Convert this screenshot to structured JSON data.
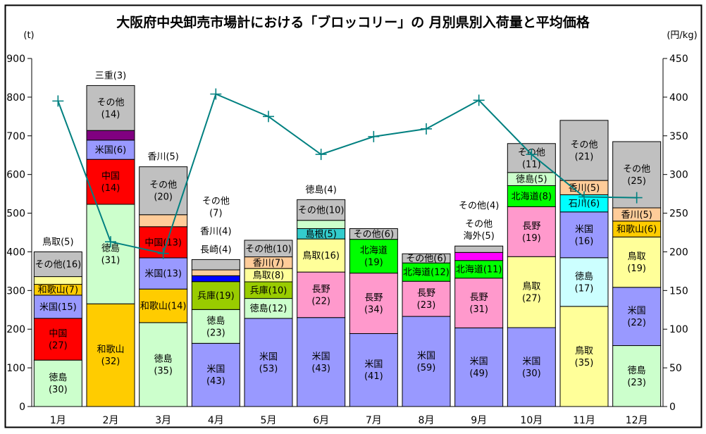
{
  "title": "大阪府中央卸売市場計における「ブロッコリー」の 月別県別入荷量と平均価格",
  "left_axis": {
    "unit": "(t)",
    "min": 0,
    "max": 900,
    "step": 100
  },
  "right_axis": {
    "unit": "(円/kg)",
    "min": 0,
    "max": 450,
    "step": 50
  },
  "chart_data": {
    "type": "stacked-bar+line",
    "categories": [
      "1月",
      "2月",
      "3月",
      "4月",
      "5月",
      "6月",
      "7月",
      "8月",
      "9月",
      "10月",
      "11月",
      "12月"
    ],
    "bar_unit": "t",
    "segment_value_meaning": "percent share shown in parentheses",
    "months": [
      {
        "month": "1月",
        "total_t": 400,
        "segments": [
          {
            "name": "徳島",
            "pct": 30,
            "color": "#CCFFCC",
            "label_lines": [
              "徳島",
              "(30)"
            ]
          },
          {
            "name": "中国",
            "pct": 27,
            "color": "#FF0000",
            "label_lines": [
              "中国",
              "(27)"
            ]
          },
          {
            "name": "米国",
            "pct": 15,
            "color": "#9999FF",
            "label_lines": [
              "米国(15)"
            ]
          },
          {
            "name": "和歌山",
            "pct": 7,
            "color": "#FFCC00",
            "label_lines": [
              "和歌山(7)"
            ]
          },
          {
            "name": "鳥取",
            "pct": 5,
            "color": "#FFFF99",
            "label_lines": null
          },
          {
            "name": "その他",
            "pct": 16,
            "color": "#C0C0C0",
            "label_lines": [
              "その他(16)"
            ]
          }
        ],
        "outside_labels": [
          [
            "鳥取(5)"
          ]
        ]
      },
      {
        "month": "2月",
        "total_t": 830,
        "segments": [
          {
            "name": "和歌山",
            "pct": 32,
            "color": "#FFCC00",
            "label_lines": [
              "和歌山",
              "(32)"
            ]
          },
          {
            "name": "徳島",
            "pct": 31,
            "color": "#CCFFCC",
            "label_lines": [
              "徳島",
              "(31)"
            ]
          },
          {
            "name": "中国",
            "pct": 14,
            "color": "#FF0000",
            "label_lines": [
              "中国",
              "(14)"
            ]
          },
          {
            "name": "米国",
            "pct": 6,
            "color": "#9999FF",
            "label_lines": [
              "米国(6)"
            ]
          },
          {
            "name": "三重",
            "pct": 3,
            "color": "#800080",
            "label_lines": null
          },
          {
            "name": "その他",
            "pct": 14,
            "color": "#C0C0C0",
            "label_lines": [
              "その他",
              "(14)"
            ]
          }
        ],
        "outside_labels": [
          [
            "三重(3)"
          ]
        ]
      },
      {
        "month": "3月",
        "total_t": 620,
        "segments": [
          {
            "name": "徳島",
            "pct": 35,
            "color": "#CCFFCC",
            "label_lines": [
              "徳島",
              "(35)"
            ]
          },
          {
            "name": "和歌山",
            "pct": 14,
            "color": "#FFCC00",
            "label_lines": [
              "和歌山(14)"
            ]
          },
          {
            "name": "米国",
            "pct": 13,
            "color": "#9999FF",
            "label_lines": [
              "米国(13)"
            ]
          },
          {
            "name": "中国",
            "pct": 13,
            "color": "#FF0000",
            "label_lines": [
              "中国(13)"
            ]
          },
          {
            "name": "香川",
            "pct": 5,
            "color": "#FFCC99",
            "label_lines": null
          },
          {
            "name": "その他",
            "pct": 20,
            "color": "#C0C0C0",
            "label_lines": [
              "その他",
              "(20)"
            ]
          }
        ],
        "outside_labels": [
          [
            "香川(5)"
          ]
        ]
      },
      {
        "month": "4月",
        "total_t": 380,
        "segments": [
          {
            "name": "米国",
            "pct": 43,
            "color": "#9999FF",
            "label_lines": [
              "米国",
              "(43)"
            ]
          },
          {
            "name": "徳島",
            "pct": 23,
            "color": "#CCFFCC",
            "label_lines": [
              "徳島",
              "(23)"
            ]
          },
          {
            "name": "兵庫",
            "pct": 19,
            "color": "#99CC00",
            "label_lines": [
              "兵庫(19)"
            ]
          },
          {
            "name": "長崎",
            "pct": 4,
            "color": "#0000FF",
            "label_lines": null
          },
          {
            "name": "香川",
            "pct": 4,
            "color": "#FFCC99",
            "label_lines": null
          },
          {
            "name": "その他",
            "pct": 7,
            "color": "#C0C0C0",
            "label_lines": null
          }
        ],
        "outside_labels": [
          [
            "その他",
            "(7)"
          ],
          [
            "香川(4)"
          ],
          [
            "長崎(4)"
          ]
        ]
      },
      {
        "month": "5月",
        "total_t": 430,
        "segments": [
          {
            "name": "米国",
            "pct": 53,
            "color": "#9999FF",
            "label_lines": [
              "米国",
              "(53)"
            ]
          },
          {
            "name": "徳島",
            "pct": 12,
            "color": "#CCFFCC",
            "label_lines": [
              "徳島(12)"
            ]
          },
          {
            "name": "兵庫",
            "pct": 10,
            "color": "#99CC00",
            "label_lines": [
              "兵庫(10)"
            ]
          },
          {
            "name": "鳥取",
            "pct": 8,
            "color": "#FFFF99",
            "label_lines": [
              "鳥取(8)"
            ]
          },
          {
            "name": "香川",
            "pct": 7,
            "color": "#FFCC99",
            "label_lines": [
              "香川(7)"
            ]
          },
          {
            "name": "その他",
            "pct": 10,
            "color": "#C0C0C0",
            "label_lines": [
              "その他(10)"
            ]
          }
        ],
        "outside_labels": null
      },
      {
        "month": "6月",
        "total_t": 535,
        "segments": [
          {
            "name": "米国",
            "pct": 43,
            "color": "#9999FF",
            "label_lines": [
              "米国",
              "(43)"
            ]
          },
          {
            "name": "長野",
            "pct": 22,
            "color": "#FF99CC",
            "label_lines": [
              "長野",
              "(22)"
            ]
          },
          {
            "name": "鳥取",
            "pct": 16,
            "color": "#FFFF99",
            "label_lines": [
              "鳥取(16)"
            ]
          },
          {
            "name": "島根",
            "pct": 5,
            "color": "#33CCCC",
            "label_lines": [
              "島根(5)"
            ]
          },
          {
            "name": "徳島",
            "pct": 4,
            "color": "#CCFFCC",
            "label_lines": null
          },
          {
            "name": "その他",
            "pct": 10,
            "color": "#C0C0C0",
            "label_lines": [
              "その他(10)"
            ]
          }
        ],
        "outside_labels": [
          [
            "徳島(4)"
          ]
        ]
      },
      {
        "month": "7月",
        "total_t": 460,
        "segments": [
          {
            "name": "米国",
            "pct": 41,
            "color": "#9999FF",
            "label_lines": [
              "米国",
              "(41)"
            ]
          },
          {
            "name": "長野",
            "pct": 34,
            "color": "#FF99CC",
            "label_lines": [
              "長野",
              "(34)"
            ]
          },
          {
            "name": "北海道",
            "pct": 19,
            "color": "#00FF00",
            "label_lines": [
              "北海道",
              "(19)"
            ]
          },
          {
            "name": "その他",
            "pct": 6,
            "color": "#C0C0C0",
            "label_lines": [
              "その他(6)"
            ]
          }
        ],
        "outside_labels": null
      },
      {
        "month": "8月",
        "total_t": 395,
        "segments": [
          {
            "name": "米国",
            "pct": 59,
            "color": "#9999FF",
            "label_lines": [
              "米国",
              "(59)"
            ]
          },
          {
            "name": "長野",
            "pct": 23,
            "color": "#FF99CC",
            "label_lines": [
              "長野",
              "(23)"
            ]
          },
          {
            "name": "北海道",
            "pct": 12,
            "color": "#00FF00",
            "label_lines": [
              "北海道(12)"
            ]
          },
          {
            "name": "その他",
            "pct": 6,
            "color": "#C0C0C0",
            "label_lines": [
              "その他(6)"
            ]
          }
        ],
        "outside_labels": null
      },
      {
        "month": "9月",
        "total_t": 415,
        "segments": [
          {
            "name": "米国",
            "pct": 49,
            "color": "#9999FF",
            "label_lines": [
              "米国",
              "(49)"
            ]
          },
          {
            "name": "長野",
            "pct": 31,
            "color": "#FF99CC",
            "label_lines": [
              "長野",
              "(31)"
            ]
          },
          {
            "name": "北海道",
            "pct": 11,
            "color": "#00FF00",
            "label_lines": [
              "北海道(11)"
            ]
          },
          {
            "name": "その他海外",
            "pct": 5,
            "color": "#FF00FF",
            "label_lines": null
          },
          {
            "name": "その他",
            "pct": 4,
            "color": "#C0C0C0",
            "label_lines": null
          }
        ],
        "outside_labels": [
          [
            "その他(4)"
          ],
          [
            "その他",
            "海外(5)"
          ]
        ]
      },
      {
        "month": "10月",
        "total_t": 680,
        "segments": [
          {
            "name": "米国",
            "pct": 30,
            "color": "#9999FF",
            "label_lines": [
              "米国",
              "(30)"
            ]
          },
          {
            "name": "鳥取",
            "pct": 27,
            "color": "#FFFF99",
            "label_lines": [
              "鳥取",
              "(27)"
            ]
          },
          {
            "name": "長野",
            "pct": 19,
            "color": "#FF99CC",
            "label_lines": [
              "長野",
              "(19)"
            ]
          },
          {
            "name": "北海道",
            "pct": 8,
            "color": "#00FF00",
            "label_lines": [
              "北海道(8)"
            ]
          },
          {
            "name": "徳島",
            "pct": 5,
            "color": "#CCFFCC",
            "label_lines": [
              "徳島(5)"
            ]
          },
          {
            "name": "その他",
            "pct": 11,
            "color": "#C0C0C0",
            "label_lines": [
              "その他",
              "(11)"
            ]
          }
        ],
        "outside_labels": null
      },
      {
        "month": "11月",
        "total_t": 740,
        "segments": [
          {
            "name": "鳥取",
            "pct": 35,
            "color": "#FFFF99",
            "label_lines": [
              "鳥取",
              "(35)"
            ]
          },
          {
            "name": "徳島",
            "pct": 17,
            "color": "#CCFFFF",
            "label_lines": [
              "徳島",
              "(17)"
            ]
          },
          {
            "name": "米国",
            "pct": 16,
            "color": "#9999FF",
            "label_lines": [
              "米国",
              "(16)"
            ]
          },
          {
            "name": "石川",
            "pct": 6,
            "color": "#00FFFF",
            "label_lines": [
              "石川(6)"
            ]
          },
          {
            "name": "香川",
            "pct": 5,
            "color": "#FFCC99",
            "label_lines": [
              "香川(5)"
            ]
          },
          {
            "name": "その他",
            "pct": 21,
            "color": "#C0C0C0",
            "label_lines": [
              "その他",
              "(21)"
            ]
          }
        ],
        "outside_labels": null
      },
      {
        "month": "12月",
        "total_t": 685,
        "segments": [
          {
            "name": "徳島",
            "pct": 23,
            "color": "#CCFFCC",
            "label_lines": [
              "徳島",
              "(23)"
            ]
          },
          {
            "name": "米国",
            "pct": 22,
            "color": "#9999FF",
            "label_lines": [
              "米国",
              "(22)"
            ]
          },
          {
            "name": "鳥取",
            "pct": 19,
            "color": "#FFFF99",
            "label_lines": [
              "鳥取",
              "(19)"
            ]
          },
          {
            "name": "和歌山",
            "pct": 6,
            "color": "#FFCC00",
            "label_lines": [
              "和歌山(6)"
            ]
          },
          {
            "name": "香川",
            "pct": 5,
            "color": "#FFCC99",
            "label_lines": [
              "香川(5)"
            ]
          },
          {
            "name": "その他",
            "pct": 25,
            "color": "#C0C0C0",
            "label_lines": [
              "その他",
              "(25)"
            ]
          }
        ],
        "outside_labels": null
      }
    ],
    "price_line": {
      "name": "平均価格",
      "unit": "円/kg",
      "color": "#008080",
      "values": [
        395,
        213,
        198,
        404,
        375,
        326,
        349,
        359,
        396,
        326,
        271,
        270
      ]
    }
  }
}
